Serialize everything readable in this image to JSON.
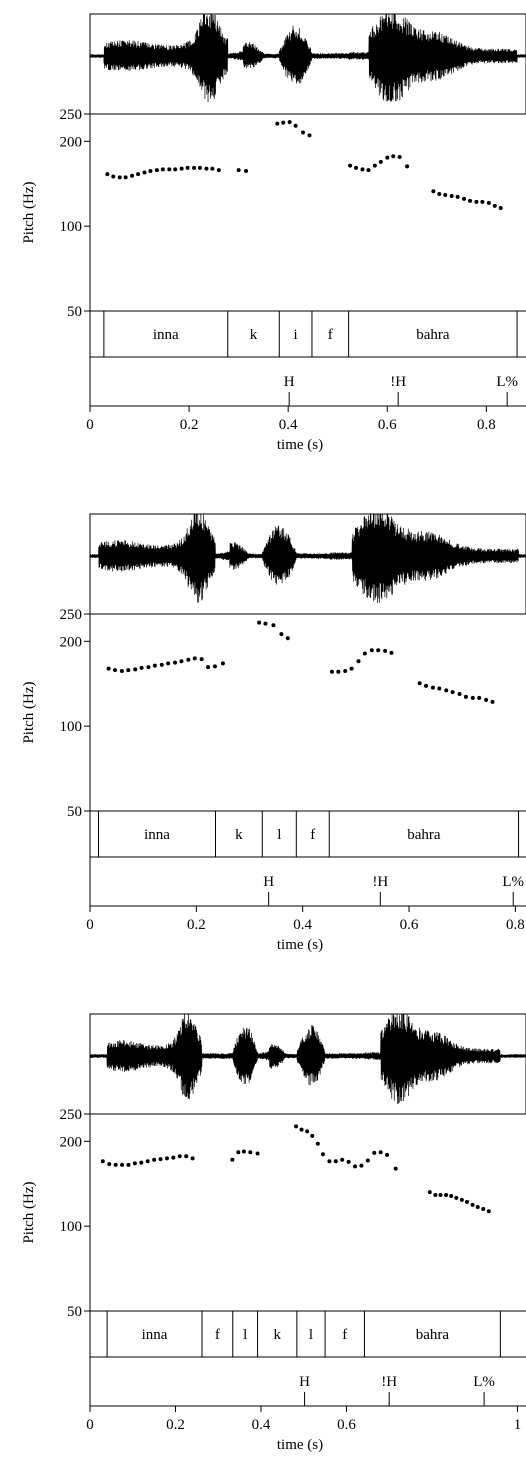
{
  "chart_data": [
    {
      "type": "scatter",
      "ylabel": "Pitch (Hz)",
      "xlabel": "time (s)",
      "xlim": [
        0,
        0.88
      ],
      "ylim": [
        50,
        250
      ],
      "x_ticks": [
        0,
        0.2,
        0.4,
        0.6,
        0.8
      ],
      "x_tick_labels": [
        "0",
        "0.2",
        "0.4",
        "0.6",
        "0.8"
      ],
      "y_ticks": [
        50,
        100,
        200,
        250
      ],
      "y_tick_labels": [
        "50",
        "100",
        "200",
        "250"
      ],
      "segments": [
        {
          "label": "inna",
          "start": 0.028,
          "end": 0.278
        },
        {
          "label": "k",
          "start": 0.278,
          "end": 0.382
        },
        {
          "label": "i",
          "start": 0.382,
          "end": 0.448
        },
        {
          "label": "f",
          "start": 0.448,
          "end": 0.522
        },
        {
          "label": "bahra",
          "start": 0.522,
          "end": 0.862
        }
      ],
      "tones": [
        {
          "label": "H",
          "time": 0.402
        },
        {
          "label": "!H",
          "time": 0.622
        },
        {
          "label": "L%",
          "time": 0.842
        }
      ],
      "pitch": [
        [
          0.035,
          153
        ],
        [
          0.047,
          150
        ],
        [
          0.06,
          149
        ],
        [
          0.072,
          149
        ],
        [
          0.085,
          151
        ],
        [
          0.097,
          153
        ],
        [
          0.11,
          155
        ],
        [
          0.122,
          157
        ],
        [
          0.135,
          158
        ],
        [
          0.147,
          159
        ],
        [
          0.16,
          159
        ],
        [
          0.172,
          159
        ],
        [
          0.185,
          160
        ],
        [
          0.197,
          161
        ],
        [
          0.21,
          161
        ],
        [
          0.222,
          161
        ],
        [
          0.235,
          160
        ],
        [
          0.247,
          160
        ],
        [
          0.26,
          158
        ],
        [
          0.3,
          158
        ],
        [
          0.315,
          157
        ],
        [
          0.378,
          231
        ],
        [
          0.39,
          233
        ],
        [
          0.403,
          234
        ],
        [
          0.415,
          227
        ],
        [
          0.43,
          215
        ],
        [
          0.443,
          210
        ],
        [
          0.525,
          164
        ],
        [
          0.537,
          161
        ],
        [
          0.55,
          159
        ],
        [
          0.562,
          158
        ],
        [
          0.575,
          164
        ],
        [
          0.587,
          169
        ],
        [
          0.6,
          175
        ],
        [
          0.612,
          177
        ],
        [
          0.625,
          176
        ],
        [
          0.64,
          163
        ],
        [
          0.693,
          133
        ],
        [
          0.705,
          130
        ],
        [
          0.717,
          129
        ],
        [
          0.73,
          128
        ],
        [
          0.742,
          127
        ],
        [
          0.755,
          125
        ],
        [
          0.767,
          123
        ],
        [
          0.78,
          122
        ],
        [
          0.792,
          122
        ],
        [
          0.805,
          121
        ],
        [
          0.817,
          118
        ],
        [
          0.829,
          116
        ]
      ]
    },
    {
      "type": "scatter",
      "ylabel": "Pitch (Hz)",
      "xlabel": "time (s)",
      "xlim": [
        0,
        0.82
      ],
      "ylim": [
        50,
        250
      ],
      "x_ticks": [
        0,
        0.2,
        0.4,
        0.6,
        0.8
      ],
      "x_tick_labels": [
        "0",
        "0.2",
        "0.4",
        "0.6",
        "0.8"
      ],
      "y_ticks": [
        50,
        100,
        200,
        250
      ],
      "y_tick_labels": [
        "50",
        "100",
        "200",
        "250"
      ],
      "segments": [
        {
          "label": "inna",
          "start": 0.016,
          "end": 0.236
        },
        {
          "label": "k",
          "start": 0.236,
          "end": 0.324
        },
        {
          "label": "l",
          "start": 0.324,
          "end": 0.388
        },
        {
          "label": "f",
          "start": 0.388,
          "end": 0.45
        },
        {
          "label": "bahra",
          "start": 0.45,
          "end": 0.806
        }
      ],
      "tones": [
        {
          "label": "H",
          "time": 0.336
        },
        {
          "label": "!H",
          "time": 0.546
        },
        {
          "label": "L%",
          "time": 0.796
        }
      ],
      "pitch": [
        [
          0.035,
          160
        ],
        [
          0.047,
          158
        ],
        [
          0.06,
          157
        ],
        [
          0.072,
          158
        ],
        [
          0.085,
          159
        ],
        [
          0.097,
          161
        ],
        [
          0.11,
          162
        ],
        [
          0.122,
          164
        ],
        [
          0.135,
          165
        ],
        [
          0.147,
          167
        ],
        [
          0.16,
          168
        ],
        [
          0.172,
          170
        ],
        [
          0.185,
          172
        ],
        [
          0.197,
          174
        ],
        [
          0.21,
          173
        ],
        [
          0.222,
          162
        ],
        [
          0.235,
          163
        ],
        [
          0.25,
          167
        ],
        [
          0.318,
          233
        ],
        [
          0.33,
          231
        ],
        [
          0.345,
          228
        ],
        [
          0.36,
          212
        ],
        [
          0.372,
          205
        ],
        [
          0.455,
          156
        ],
        [
          0.467,
          156
        ],
        [
          0.48,
          157
        ],
        [
          0.492,
          160
        ],
        [
          0.505,
          170
        ],
        [
          0.517,
          181
        ],
        [
          0.53,
          186
        ],
        [
          0.542,
          186
        ],
        [
          0.555,
          185
        ],
        [
          0.567,
          182
        ],
        [
          0.62,
          142
        ],
        [
          0.632,
          139
        ],
        [
          0.645,
          137
        ],
        [
          0.657,
          136
        ],
        [
          0.67,
          134
        ],
        [
          0.682,
          132
        ],
        [
          0.695,
          130
        ],
        [
          0.707,
          127
        ],
        [
          0.72,
          126
        ],
        [
          0.732,
          126
        ],
        [
          0.745,
          124
        ],
        [
          0.757,
          122
        ]
      ]
    },
    {
      "type": "scatter",
      "ylabel": "Pitch (Hz)",
      "xlabel": "time (s)",
      "xlim": [
        0,
        1.02
      ],
      "ylim": [
        50,
        250
      ],
      "x_ticks": [
        0,
        0.2,
        0.4,
        0.6,
        1.0
      ],
      "x_tick_labels": [
        "0",
        "0.2",
        "0.4",
        "0.6",
        "1"
      ],
      "y_ticks": [
        50,
        100,
        200,
        250
      ],
      "y_tick_labels": [
        "50",
        "100",
        "200",
        "250"
      ],
      "segments": [
        {
          "label": "inna",
          "start": 0.04,
          "end": 0.262
        },
        {
          "label": "f",
          "start": 0.262,
          "end": 0.334
        },
        {
          "label": "l",
          "start": 0.334,
          "end": 0.392
        },
        {
          "label": "k",
          "start": 0.392,
          "end": 0.484
        },
        {
          "label": "l",
          "start": 0.484,
          "end": 0.55
        },
        {
          "label": "f",
          "start": 0.55,
          "end": 0.642
        },
        {
          "label": "bahra",
          "start": 0.642,
          "end": 0.96
        }
      ],
      "tones": [
        {
          "label": "H",
          "time": 0.502
        },
        {
          "label": "!H",
          "time": 0.7
        },
        {
          "label": "L%",
          "time": 0.922
        }
      ],
      "pitch": [
        [
          0.03,
          170
        ],
        [
          0.045,
          166
        ],
        [
          0.06,
          165
        ],
        [
          0.075,
          165
        ],
        [
          0.09,
          165
        ],
        [
          0.105,
          167
        ],
        [
          0.12,
          168
        ],
        [
          0.135,
          170
        ],
        [
          0.15,
          172
        ],
        [
          0.165,
          173
        ],
        [
          0.18,
          174
        ],
        [
          0.195,
          175
        ],
        [
          0.21,
          177
        ],
        [
          0.225,
          177
        ],
        [
          0.24,
          174
        ],
        [
          0.333,
          172
        ],
        [
          0.347,
          183
        ],
        [
          0.36,
          184
        ],
        [
          0.375,
          183
        ],
        [
          0.392,
          181
        ],
        [
          0.482,
          226
        ],
        [
          0.495,
          220
        ],
        [
          0.508,
          217
        ],
        [
          0.52,
          209
        ],
        [
          0.533,
          196
        ],
        [
          0.545,
          180
        ],
        [
          0.56,
          170
        ],
        [
          0.575,
          170
        ],
        [
          0.59,
          172
        ],
        [
          0.605,
          169
        ],
        [
          0.62,
          163
        ],
        [
          0.635,
          164
        ],
        [
          0.65,
          171
        ],
        [
          0.665,
          182
        ],
        [
          0.68,
          183
        ],
        [
          0.695,
          179
        ],
        [
          0.715,
          160
        ],
        [
          0.795,
          132
        ],
        [
          0.808,
          129
        ],
        [
          0.82,
          129
        ],
        [
          0.833,
          129
        ],
        [
          0.845,
          128
        ],
        [
          0.857,
          126
        ],
        [
          0.87,
          124
        ],
        [
          0.882,
          122
        ],
        [
          0.895,
          119
        ],
        [
          0.907,
          117
        ],
        [
          0.92,
          115
        ],
        [
          0.933,
          113
        ]
      ]
    }
  ]
}
